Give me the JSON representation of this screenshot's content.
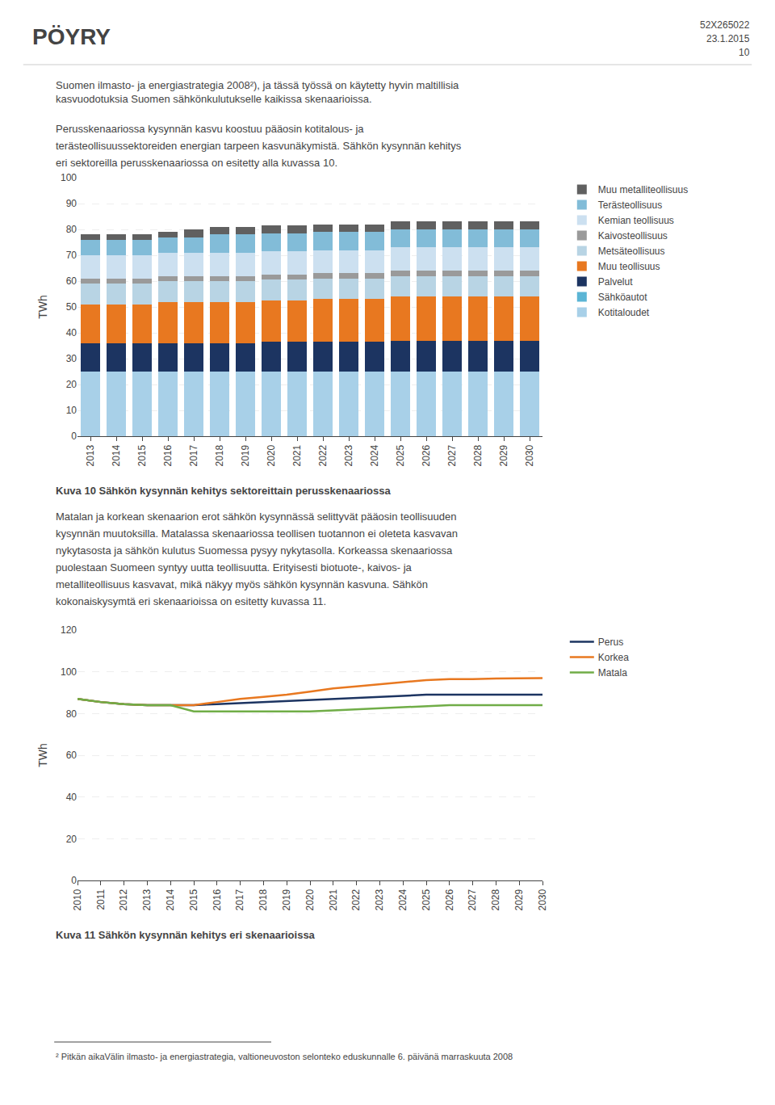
{
  "chart_data": [
    {
      "type": "bar",
      "stacked": true,
      "title": "Kuva 10 Sähkön kysynnän kehitys sektoreittain perusskenaariossa",
      "categories": [
        "2013",
        "2014",
        "2015",
        "2016",
        "2017",
        "2018",
        "2019",
        "2020",
        "2021",
        "2022",
        "2023",
        "2024",
        "2025",
        "2026",
        "2027",
        "2028",
        "2029",
        "2030"
      ],
      "series": [
        {
          "name": "Kotitaloudet",
          "color": "#a8d0e8",
          "values": [
            25,
            25,
            25,
            25,
            25,
            25,
            25,
            25,
            25,
            25,
            25,
            25,
            25,
            25,
            25,
            25,
            25,
            25
          ]
        },
        {
          "name": "Sähköautot",
          "color": "#5bb5d5",
          "values": [
            0,
            0,
            0,
            0,
            0,
            0,
            0,
            0,
            0,
            0,
            0,
            0,
            0,
            0,
            0,
            0,
            0,
            0
          ]
        },
        {
          "name": "Palvelut",
          "color": "#1c3461",
          "values": [
            11,
            11,
            11,
            11,
            11,
            11,
            11,
            11.5,
            11.5,
            11.5,
            11.5,
            11.5,
            12,
            12,
            12,
            12,
            12,
            12
          ]
        },
        {
          "name": "Muu teollisuus",
          "color": "#e87820",
          "values": [
            15,
            15,
            15,
            16,
            16,
            16,
            16,
            16,
            16,
            16.5,
            16.5,
            16.5,
            17,
            17,
            17,
            17,
            17,
            17
          ]
        },
        {
          "name": "Metsäteollisuus",
          "color": "#b8d4e4",
          "values": [
            8,
            8,
            8,
            8,
            8,
            8,
            8,
            8,
            8,
            8,
            8,
            8,
            8,
            8,
            8,
            8,
            8,
            8
          ]
        },
        {
          "name": "Kaivosteollisuus",
          "color": "#9a9a9a",
          "values": [
            2,
            2,
            2,
            2,
            2,
            2,
            2,
            2,
            2,
            2,
            2,
            2,
            2,
            2,
            2,
            2,
            2,
            2
          ]
        },
        {
          "name": "Kemian teollisuus",
          "color": "#cce0f0",
          "values": [
            9,
            9,
            9,
            9,
            9,
            9,
            9,
            9,
            9,
            9,
            9,
            9,
            9,
            9,
            9,
            9,
            9,
            9
          ]
        },
        {
          "name": "Terästeollisuus",
          "color": "#82bcd8",
          "values": [
            6,
            6,
            6,
            6,
            6,
            7,
            7,
            7,
            7,
            7,
            7,
            7,
            7,
            7,
            7,
            7,
            7,
            7
          ]
        },
        {
          "name": "Muu metalliteollisuus",
          "color": "#606060",
          "values": [
            2,
            2,
            2,
            2,
            3,
            3,
            3,
            3,
            3,
            3,
            3,
            3,
            3,
            3,
            3,
            3,
            3,
            3
          ]
        }
      ],
      "ylim": [
        0,
        100
      ],
      "yticks": [
        0,
        10,
        20,
        30,
        40,
        50,
        60,
        70,
        80,
        90,
        100
      ],
      "ylabel": "TWh",
      "grid": true,
      "legend": "right",
      "annotations": [
        "PÖYRY",
        "52X265022",
        "23.1.2015",
        "10",
        "Suomen ilmasto- ja energiastrategia 2008²), ja tässä työssä on käytetty hyvin maltillisia\nkasvuodotuksia Suomen sähkönkulutukselle kaikissa skenaarioissa.",
        "Perusskenaariossa kysynnän kasvu koostuu pääosin kotitalous- ja",
        "terästeollisuussektoreiden energian tarpeen kasvunäkymistä. Sähkön kysynnän kehitys",
        "eri sektoreilla perusskenaariossa on esitetty alla kuvassa 10."
      ]
    },
    {
      "type": "line",
      "title": "Kuva 11 Sähkön kysynnän kehitys eri skenaarioissa",
      "categories": [
        "2010",
        "2011",
        "2012",
        "2013",
        "2014",
        "2015",
        "2016",
        "2017",
        "2018",
        "2019",
        "2020",
        "2021",
        "2022",
        "2023",
        "2024",
        "2025",
        "2026",
        "2027",
        "2028",
        "2029",
        "2030"
      ],
      "series": [
        {
          "name": "Perus",
          "color": "#1c3461",
          "values": [
            87,
            85.5,
            84.5,
            84,
            84,
            84,
            84.5,
            85,
            85.5,
            86,
            86.5,
            87,
            87.5,
            88,
            88.5,
            89,
            89,
            89,
            89,
            89,
            89
          ]
        },
        {
          "name": "Korkea",
          "color": "#e87820",
          "values": [
            87,
            85.5,
            84.5,
            84,
            84,
            84,
            85.5,
            87,
            88,
            89,
            90.5,
            92,
            93,
            94,
            95,
            96,
            96.5,
            96.5,
            96.8,
            97,
            97
          ]
        },
        {
          "name": "Matala",
          "color": "#70ad47",
          "values": [
            87,
            85.5,
            84.5,
            84,
            84,
            81,
            81,
            81,
            81,
            81,
            81,
            81.5,
            82,
            82.5,
            83,
            83.5,
            84,
            84,
            84,
            84,
            84
          ]
        }
      ],
      "ylim": [
        0,
        120
      ],
      "yticks": [
        0,
        20,
        40,
        60,
        80,
        100,
        120
      ],
      "ylabel": "TWh",
      "grid": true,
      "legend": "right",
      "annotations": [
        "Matalan ja korkean skenaarion erot sähkön kysynnässä selittyvät pääosin teollisuuden",
        "kysynnän muutoksilla. Matalassa skenaariossa teollisen tuotannon ei oleteta kasvavan",
        "nykytasosta ja sähkön kulutus Suomessa pysyy nykytasolla. Korkeassa skenaariossa",
        "puolestaan Suomeen syntyy uutta teollisuutta. Erityisesti biotuote-, kaivos- ja",
        "metalliteollisuus kasvavat, mikä näkyy myös sähkön kysynnän kasvuna. Sähkön",
        "kokonaiskysymtä eri skenaarioissa on esitetty kuvassa 11.",
        "² Pitkän aikaVälin ilmasto- ja energiastrategia, valtioneuvoston selonteko eduskunnalle 6. päivänä marraskuuta 2008"
      ]
    }
  ]
}
